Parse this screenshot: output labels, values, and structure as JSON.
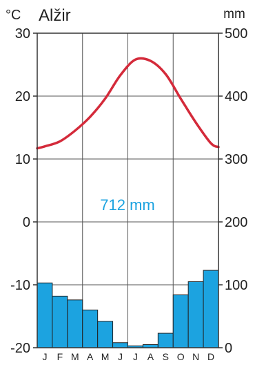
{
  "chart_data": {
    "type": "bar",
    "title": "Alžir",
    "left_unit": "°C",
    "right_unit": "mm",
    "annual_total": "712 mm",
    "categories": [
      "J",
      "F",
      "M",
      "A",
      "M",
      "J",
      "J",
      "A",
      "S",
      "O",
      "N",
      "D"
    ],
    "temperature_axis": {
      "min": -20,
      "max": 30,
      "ticks": [
        30,
        20,
        10,
        0,
        -10,
        -20
      ]
    },
    "precipitation_axis": {
      "min": 0,
      "max": 500,
      "ticks": [
        500,
        400,
        300,
        200,
        100,
        0
      ]
    },
    "series": [
      {
        "name": "temperature",
        "type": "line",
        "color": "#d42a3a",
        "values": [
          12,
          12.8,
          14.5,
          16.7,
          19.6,
          23.3,
          25.8,
          25.6,
          23.5,
          19.6,
          15.8,
          12.5
        ]
      },
      {
        "name": "precipitation",
        "type": "bar",
        "color": "#1ca3e0",
        "values": [
          103,
          82,
          76,
          60,
          42,
          8,
          3,
          5,
          23,
          84,
          105,
          123
        ]
      }
    ],
    "grid": true
  }
}
